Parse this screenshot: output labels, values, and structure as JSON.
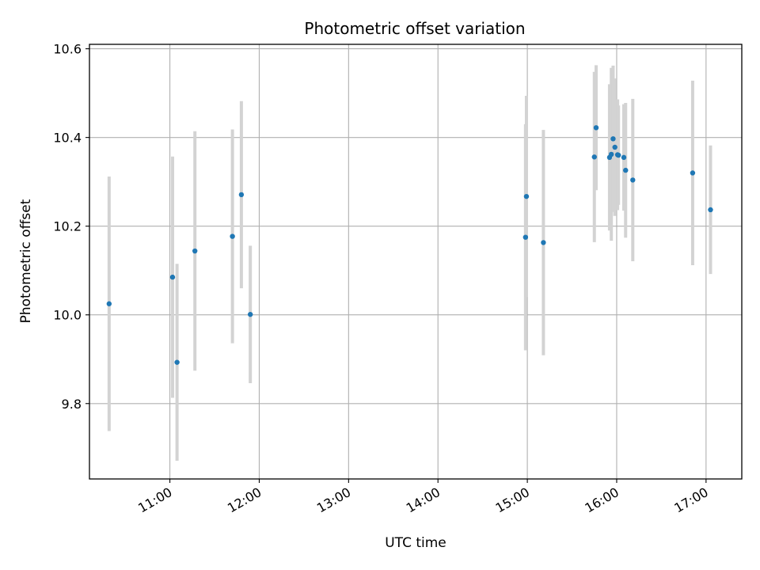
{
  "chart_data": {
    "type": "scatter",
    "title": "Photometric offset variation",
    "xlabel": "UTC time",
    "ylabel": "Photometric offset",
    "x_unit": "hours UTC",
    "xlim": [
      10.1,
      17.4
    ],
    "ylim": [
      9.63,
      10.61
    ],
    "x_ticks": [
      {
        "value": 11,
        "label": "11:00"
      },
      {
        "value": 12,
        "label": "12:00"
      },
      {
        "value": 13,
        "label": "13:00"
      },
      {
        "value": 14,
        "label": "14:00"
      },
      {
        "value": 15,
        "label": "15:00"
      },
      {
        "value": 16,
        "label": "16:00"
      },
      {
        "value": 17,
        "label": "17:00"
      }
    ],
    "y_ticks": [
      {
        "value": 9.8,
        "label": "9.8"
      },
      {
        "value": 10.0,
        "label": "10.0"
      },
      {
        "value": 10.2,
        "label": "10.2"
      },
      {
        "value": 10.4,
        "label": "10.4"
      },
      {
        "value": 10.6,
        "label": "10.6"
      }
    ],
    "grid": true,
    "marker_color": "#1f77b4",
    "errorbar_color": "#d3d3d3",
    "points": [
      {
        "x": 10.32,
        "y": 10.025,
        "err": 0.287
      },
      {
        "x": 11.03,
        "y": 10.085,
        "err": 0.272
      },
      {
        "x": 11.08,
        "y": 9.893,
        "err": 0.222
      },
      {
        "x": 11.28,
        "y": 10.144,
        "err": 0.27
      },
      {
        "x": 11.7,
        "y": 10.177,
        "err": 0.241
      },
      {
        "x": 11.8,
        "y": 10.271,
        "err": 0.211
      },
      {
        "x": 11.9,
        "y": 10.001,
        "err": 0.155
      },
      {
        "x": 14.98,
        "y": 10.175,
        "err": 0.255
      },
      {
        "x": 14.99,
        "y": 10.267,
        "err": 0.227
      },
      {
        "x": 15.18,
        "y": 10.163,
        "err": 0.254
      },
      {
        "x": 15.75,
        "y": 10.356,
        "err": 0.192
      },
      {
        "x": 15.77,
        "y": 10.422,
        "err": 0.141
      },
      {
        "x": 15.92,
        "y": 10.355,
        "err": 0.165
      },
      {
        "x": 15.94,
        "y": 10.362,
        "err": 0.195
      },
      {
        "x": 15.96,
        "y": 10.397,
        "err": 0.165
      },
      {
        "x": 15.98,
        "y": 10.378,
        "err": 0.155
      },
      {
        "x": 16.01,
        "y": 10.361,
        "err": 0.125
      },
      {
        "x": 16.02,
        "y": 10.36,
        "err": 0.112
      },
      {
        "x": 16.08,
        "y": 10.355,
        "err": 0.12
      },
      {
        "x": 16.1,
        "y": 10.326,
        "err": 0.152
      },
      {
        "x": 16.18,
        "y": 10.304,
        "err": 0.183
      },
      {
        "x": 16.85,
        "y": 10.32,
        "err": 0.208
      },
      {
        "x": 17.05,
        "y": 10.237,
        "err": 0.145
      }
    ]
  }
}
